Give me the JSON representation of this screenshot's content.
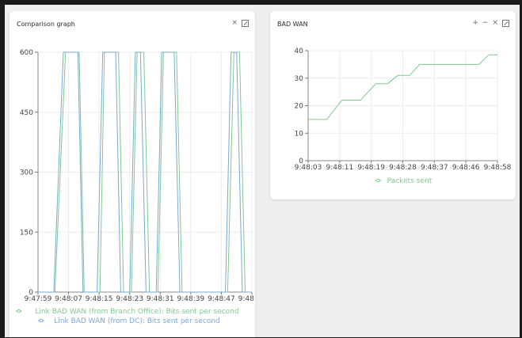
{
  "panels": [
    {
      "title": "Comparison graph",
      "close_label": "×",
      "chart_data": {
        "type": "line",
        "x": [
          "9:47:59",
          "9:48:07",
          "9:48:15",
          "9:48:23",
          "9:48:31",
          "9:48:39",
          "9:48:47",
          "9:48:58"
        ],
        "ylim": [
          0,
          600
        ],
        "yticks": [
          0,
          150,
          300,
          450,
          600
        ],
        "grid": true,
        "legend": "bottom",
        "series": [
          {
            "name": "Link BAD WAN (from Branch Office): Bits sent per second",
            "color": "#7ac98f",
            "points": [
              [
                0,
                0
              ],
              [
                3,
                0
              ],
              [
                4.9,
                600
              ],
              [
                7.3,
                600
              ],
              [
                8.2,
                0
              ],
              [
                11,
                0
              ],
              [
                11.8,
                600
              ],
              [
                14.3,
                600
              ],
              [
                15.2,
                0
              ],
              [
                16.6,
                0
              ],
              [
                17.6,
                600
              ],
              [
                18.8,
                600
              ],
              [
                19.8,
                0
              ],
              [
                21.3,
                0
              ],
              [
                22.3,
                600
              ],
              [
                24.6,
                600
              ],
              [
                25.6,
                0
              ],
              [
                33.7,
                0
              ],
              [
                34.8,
                600
              ],
              [
                35.8,
                600
              ],
              [
                36.8,
                0
              ],
              [
                38,
                0
              ]
            ]
          },
          {
            "name": "Link BAD WAN (from DC): Bits sent per second",
            "color": "#7ba7d4",
            "points": [
              [
                0,
                0
              ],
              [
                2.8,
                0
              ],
              [
                4.5,
                600
              ],
              [
                7.1,
                600
              ],
              [
                8.0,
                0
              ],
              [
                10.5,
                0
              ],
              [
                11.5,
                600
              ],
              [
                13.8,
                600
              ],
              [
                14.7,
                0
              ],
              [
                16.3,
                0
              ],
              [
                17.3,
                600
              ],
              [
                18.2,
                600
              ],
              [
                19.2,
                0
              ],
              [
                21.0,
                0
              ],
              [
                22.0,
                600
              ],
              [
                24.2,
                600
              ],
              [
                25.2,
                0
              ],
              [
                33.3,
                0
              ],
              [
                34.3,
                600
              ],
              [
                35.3,
                600
              ],
              [
                36.3,
                0
              ],
              [
                38,
                0
              ]
            ]
          }
        ]
      }
    },
    {
      "title": "BAD WAN",
      "plus_label": "+",
      "minus_label": "−",
      "close_label": "×",
      "chart_data": {
        "type": "line",
        "x": [
          "9:48:03",
          "9:48:11",
          "9:48:19",
          "9:48:28",
          "9:48:37",
          "9:48:46",
          "9:48:58"
        ],
        "ylim": [
          0,
          40
        ],
        "yticks": [
          0,
          10,
          20,
          30,
          40
        ],
        "grid": true,
        "legend": "bottom",
        "series": [
          {
            "name": "Packets sent",
            "color": "#7ac98f",
            "points": [
              [
                0,
                15
              ],
              [
                1.1,
                15
              ],
              [
                2.0,
                22
              ],
              [
                3.1,
                22
              ],
              [
                4.0,
                28
              ],
              [
                4.7,
                28
              ],
              [
                5.3,
                31
              ],
              [
                6.0,
                31
              ],
              [
                6.6,
                35
              ],
              [
                8.5,
                35
              ],
              [
                9.0,
                35
              ],
              [
                10.1,
                35
              ],
              [
                10.7,
                38.5
              ],
              [
                11.2,
                38.5
              ]
            ]
          }
        ]
      }
    }
  ]
}
